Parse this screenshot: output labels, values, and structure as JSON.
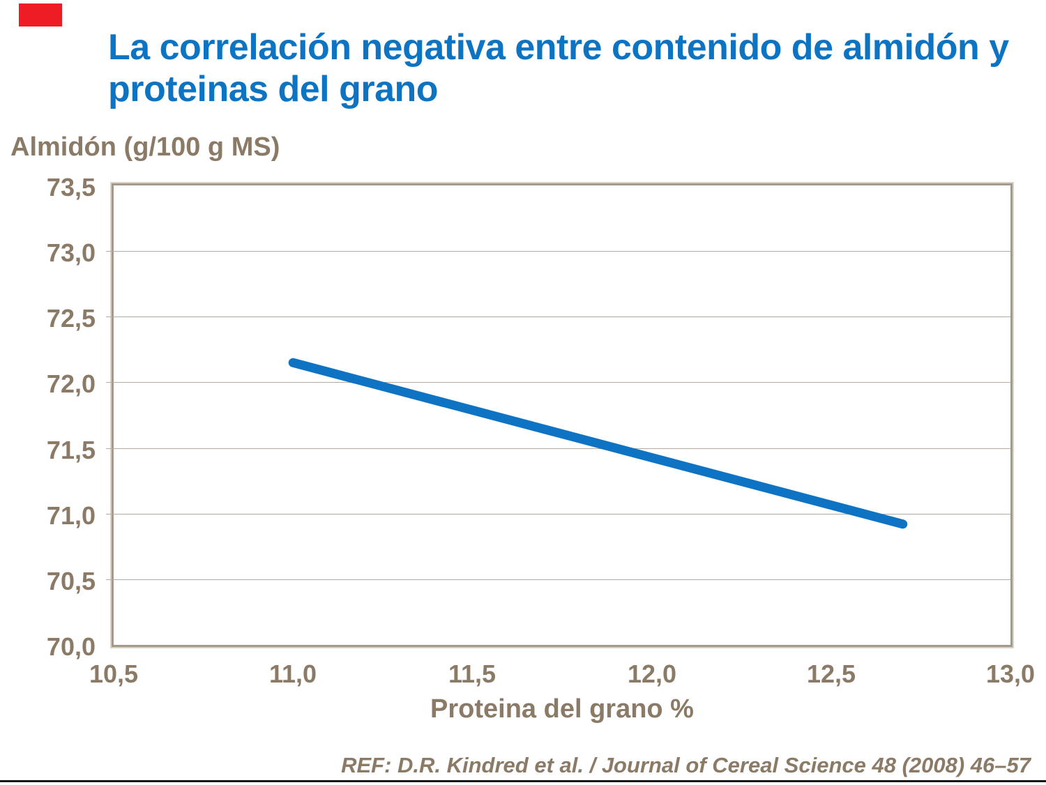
{
  "slide": {
    "title_line1": "La correlación negativa entre contenido de almidón y",
    "title_line2": "proteinas del grano",
    "reference": "REF: D.R. Kindred et al. / Journal of Cereal Science 48 (2008) 46–57"
  },
  "colors": {
    "title_blue": "#0d74c4",
    "line_blue": "#0f73c4",
    "axis_text_taupe": "#8a7a66",
    "gridline": "#b4aa9e",
    "plot_border": "#a49a8c",
    "plot_border_light": "#d9d2c9",
    "flag_red": "#ee1c25",
    "bottom_rule": "#161616"
  },
  "chart_data": {
    "type": "line",
    "title": "La correlación negativa entre contenido de almidón y proteinas del grano",
    "xlabel": "Proteina del grano %",
    "ylabel": "Almidón (g/100 g MS)",
    "xlim": [
      10.5,
      13.0
    ],
    "ylim": [
      70.0,
      73.5
    ],
    "x_ticks": [
      10.5,
      11.0,
      11.5,
      12.0,
      12.5,
      13.0
    ],
    "x_tick_labels": [
      "10,5",
      "11,0",
      "11,5",
      "12,0",
      "12,5",
      "13,0"
    ],
    "y_ticks": [
      70.0,
      70.5,
      71.0,
      71.5,
      72.0,
      72.5,
      73.0,
      73.5
    ],
    "y_tick_labels": [
      "70,0",
      "70,5",
      "71,0",
      "71,5",
      "72,0",
      "72,5",
      "73,0",
      "73,5"
    ],
    "grid": "horizontal",
    "legend": "none",
    "series": [
      {
        "points": [
          [
            11.0,
            72.15
          ],
          [
            12.7,
            70.92
          ]
        ]
      }
    ]
  }
}
